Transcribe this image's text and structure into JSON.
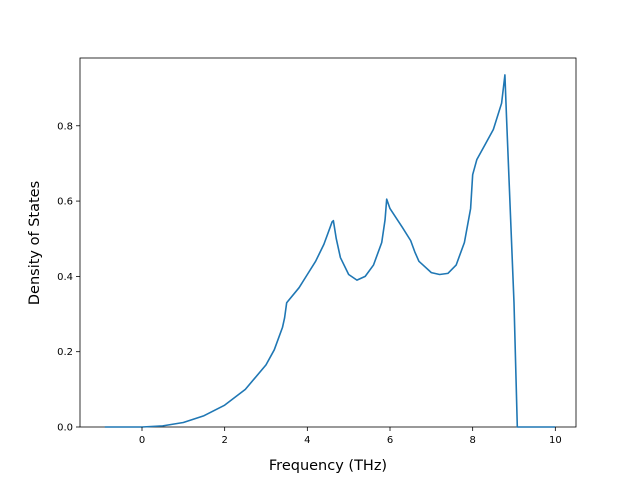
{
  "chart_data": {
    "type": "line",
    "title": "",
    "xlabel": "Frequency (THz)",
    "ylabel": "Density of States",
    "xlim": [
      -1.5,
      10.5
    ],
    "ylim": [
      0.0,
      0.98
    ],
    "grid": false,
    "legend": "none",
    "xticks": [
      0,
      2,
      4,
      6,
      8,
      10
    ],
    "xtick_labels": [
      "0",
      "2",
      "4",
      "6",
      "8",
      "10"
    ],
    "yticks": [
      0.0,
      0.2,
      0.4,
      0.6,
      0.8
    ],
    "ytick_labels": [
      "0.0",
      "0.2",
      "0.4",
      "0.6",
      "0.8"
    ],
    "series": [
      {
        "color": "#1f77b4",
        "x": [
          -0.9,
          0.0,
          0.5,
          1.0,
          1.5,
          2.0,
          2.5,
          3.0,
          3.2,
          3.4,
          3.45,
          3.5,
          3.8,
          4.0,
          4.2,
          4.4,
          4.5,
          4.6,
          4.63,
          4.7,
          4.8,
          5.0,
          5.2,
          5.4,
          5.6,
          5.8,
          5.88,
          5.92,
          6.0,
          6.3,
          6.5,
          6.6,
          6.7,
          6.8,
          7.0,
          7.2,
          7.4,
          7.6,
          7.8,
          7.95,
          8.0,
          8.1,
          8.3,
          8.5,
          8.7,
          8.78,
          8.82,
          9.0,
          9.08,
          9.5,
          10.0
        ],
        "y": [
          0.0,
          0.0,
          0.003,
          0.012,
          0.03,
          0.058,
          0.1,
          0.165,
          0.205,
          0.265,
          0.29,
          0.33,
          0.37,
          0.405,
          0.44,
          0.485,
          0.515,
          0.545,
          0.548,
          0.5,
          0.45,
          0.405,
          0.39,
          0.4,
          0.43,
          0.49,
          0.55,
          0.605,
          0.58,
          0.53,
          0.495,
          0.465,
          0.44,
          0.43,
          0.41,
          0.405,
          0.408,
          0.43,
          0.49,
          0.58,
          0.67,
          0.71,
          0.75,
          0.79,
          0.86,
          0.935,
          0.82,
          0.33,
          0.0,
          0.0,
          0.0
        ]
      }
    ]
  }
}
